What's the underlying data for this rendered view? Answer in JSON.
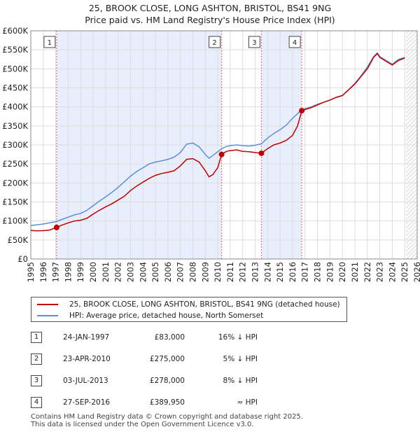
{
  "chart_data": {
    "type": "line",
    "title": "25, BROOK CLOSE, LONG ASHTON, BRISTOL, BS41 9NG",
    "subtitle": "Price paid vs. HM Land Registry's House Price Index (HPI)",
    "xlim": [
      1995,
      2026
    ],
    "ylim": [
      0,
      600000
    ],
    "x_ticks": [
      "1995",
      "1996",
      "1997",
      "1998",
      "1999",
      "2000",
      "2001",
      "2002",
      "2003",
      "2004",
      "2005",
      "2006",
      "2007",
      "2008",
      "2009",
      "2010",
      "2011",
      "2012",
      "2013",
      "2014",
      "2015",
      "2016",
      "2017",
      "2018",
      "2019",
      "2020",
      "2021",
      "2022",
      "2023",
      "2024",
      "2025",
      "2026"
    ],
    "y_ticks": [
      {
        "value": 0,
        "label": "£0"
      },
      {
        "value": 50000,
        "label": "£50K"
      },
      {
        "value": 100000,
        "label": "£100K"
      },
      {
        "value": 150000,
        "label": "£150K"
      },
      {
        "value": 200000,
        "label": "£200K"
      },
      {
        "value": 250000,
        "label": "£250K"
      },
      {
        "value": 300000,
        "label": "£300K"
      },
      {
        "value": 350000,
        "label": "£350K"
      },
      {
        "value": 400000,
        "label": "£400K"
      },
      {
        "value": 450000,
        "label": "£450K"
      },
      {
        "value": 500000,
        "label": "£500K"
      },
      {
        "value": 550000,
        "label": "£550K"
      },
      {
        "value": 600000,
        "label": "£600K"
      }
    ],
    "series": [
      {
        "name": "25, BROOK CLOSE, LONG ASHTON, BRISTOL, BS41 9NG (detached house)",
        "color": "#c00000",
        "points": [
          [
            1995.0,
            75000
          ],
          [
            1995.5,
            74000
          ],
          [
            1996.0,
            74500
          ],
          [
            1996.5,
            76000
          ],
          [
            1997.07,
            83000
          ],
          [
            1997.5,
            89000
          ],
          [
            1998.0,
            95000
          ],
          [
            1998.5,
            100000
          ],
          [
            1999.0,
            102000
          ],
          [
            1999.5,
            107000
          ],
          [
            2000.0,
            118000
          ],
          [
            2000.5,
            128000
          ],
          [
            2001.0,
            137000
          ],
          [
            2001.5,
            145000
          ],
          [
            2002.0,
            155000
          ],
          [
            2002.5,
            165000
          ],
          [
            2003.0,
            180000
          ],
          [
            2003.5,
            192000
          ],
          [
            2004.0,
            202000
          ],
          [
            2004.5,
            212000
          ],
          [
            2005.0,
            220000
          ],
          [
            2005.5,
            225000
          ],
          [
            2006.0,
            228000
          ],
          [
            2006.5,
            232000
          ],
          [
            2007.0,
            245000
          ],
          [
            2007.5,
            262000
          ],
          [
            2008.0,
            264000
          ],
          [
            2008.5,
            255000
          ],
          [
            2009.0,
            232000
          ],
          [
            2009.3,
            216000
          ],
          [
            2009.6,
            222000
          ],
          [
            2010.0,
            240000
          ],
          [
            2010.31,
            275000
          ],
          [
            2010.7,
            283000
          ],
          [
            2011.0,
            285000
          ],
          [
            2011.5,
            287000
          ],
          [
            2012.0,
            283000
          ],
          [
            2012.5,
            282000
          ],
          [
            2013.0,
            280000
          ],
          [
            2013.5,
            278000
          ],
          [
            2014.0,
            290000
          ],
          [
            2014.5,
            300000
          ],
          [
            2015.0,
            305000
          ],
          [
            2015.5,
            312000
          ],
          [
            2016.0,
            325000
          ],
          [
            2016.4,
            350000
          ],
          [
            2016.74,
            389950
          ],
          [
            2017.0,
            393000
          ],
          [
            2017.5,
            398000
          ],
          [
            2018.0,
            405000
          ],
          [
            2018.5,
            412000
          ],
          [
            2019.0,
            418000
          ],
          [
            2019.5,
            425000
          ],
          [
            2020.0,
            430000
          ],
          [
            2020.5,
            445000
          ],
          [
            2021.0,
            460000
          ],
          [
            2021.5,
            480000
          ],
          [
            2022.0,
            500000
          ],
          [
            2022.5,
            530000
          ],
          [
            2022.8,
            540000
          ],
          [
            2023.0,
            530000
          ],
          [
            2023.5,
            520000
          ],
          [
            2024.0,
            510000
          ],
          [
            2024.5,
            522000
          ],
          [
            2025.0,
            528000
          ]
        ]
      },
      {
        "name": "HPI: Average price, detached house, North Somerset",
        "color": "#5b8fd6",
        "points": [
          [
            1995.0,
            88000
          ],
          [
            1995.5,
            90000
          ],
          [
            1996.0,
            92000
          ],
          [
            1996.5,
            95000
          ],
          [
            1997.0,
            98000
          ],
          [
            1997.5,
            104000
          ],
          [
            1998.0,
            110000
          ],
          [
            1998.5,
            116000
          ],
          [
            1999.0,
            120000
          ],
          [
            1999.5,
            128000
          ],
          [
            2000.0,
            140000
          ],
          [
            2000.5,
            152000
          ],
          [
            2001.0,
            163000
          ],
          [
            2001.5,
            175000
          ],
          [
            2002.0,
            188000
          ],
          [
            2002.5,
            203000
          ],
          [
            2003.0,
            218000
          ],
          [
            2003.5,
            230000
          ],
          [
            2004.0,
            240000
          ],
          [
            2004.5,
            250000
          ],
          [
            2005.0,
            255000
          ],
          [
            2005.5,
            258000
          ],
          [
            2006.0,
            262000
          ],
          [
            2006.5,
            268000
          ],
          [
            2007.0,
            280000
          ],
          [
            2007.5,
            302000
          ],
          [
            2008.0,
            305000
          ],
          [
            2008.5,
            295000
          ],
          [
            2009.0,
            275000
          ],
          [
            2009.3,
            265000
          ],
          [
            2009.6,
            272000
          ],
          [
            2010.0,
            282000
          ],
          [
            2010.31,
            290000
          ],
          [
            2010.7,
            296000
          ],
          [
            2011.0,
            298000
          ],
          [
            2011.5,
            300000
          ],
          [
            2012.0,
            298000
          ],
          [
            2012.5,
            297000
          ],
          [
            2013.0,
            299000
          ],
          [
            2013.5,
            303000
          ],
          [
            2014.0,
            318000
          ],
          [
            2014.5,
            330000
          ],
          [
            2015.0,
            340000
          ],
          [
            2015.5,
            352000
          ],
          [
            2016.0,
            370000
          ],
          [
            2016.5,
            385000
          ],
          [
            2016.74,
            392000
          ],
          [
            2017.0,
            395000
          ],
          [
            2017.5,
            400000
          ],
          [
            2018.0,
            407000
          ],
          [
            2018.5,
            412000
          ],
          [
            2019.0,
            418000
          ],
          [
            2019.5,
            425000
          ],
          [
            2020.0,
            430000
          ],
          [
            2020.5,
            445000
          ],
          [
            2021.0,
            462000
          ],
          [
            2021.5,
            482000
          ],
          [
            2022.0,
            505000
          ],
          [
            2022.5,
            532000
          ],
          [
            2022.8,
            542000
          ],
          [
            2023.0,
            532000
          ],
          [
            2023.5,
            522000
          ],
          [
            2024.0,
            512000
          ],
          [
            2024.5,
            525000
          ],
          [
            2025.0,
            530000
          ]
        ]
      }
    ],
    "sales": [
      {
        "num": "1",
        "x": 1997.07,
        "price": 83000
      },
      {
        "num": "2",
        "x": 2010.31,
        "price": 275000
      },
      {
        "num": "3",
        "x": 2013.5,
        "price": 278000
      },
      {
        "num": "4",
        "x": 2016.74,
        "price": 389950
      }
    ],
    "shaded_regions": [
      [
        1997.07,
        2010.31
      ],
      [
        2013.5,
        2016.74
      ]
    ],
    "hatch_from": 2025.1
  },
  "legend": {
    "property_label": "25, BROOK CLOSE, LONG ASHTON, BRISTOL, BS41 9NG (detached house)",
    "hpi_label": "HPI: Average price, detached house, North Somerset",
    "property_color": "#c00000",
    "hpi_color": "#5b8fd6"
  },
  "sales_table": [
    {
      "num": "1",
      "date": "24-JAN-1997",
      "price": "£83,000",
      "hpi": "16% ↓ HPI"
    },
    {
      "num": "2",
      "date": "23-APR-2010",
      "price": "£275,000",
      "hpi": "5% ↓ HPI"
    },
    {
      "num": "3",
      "date": "03-JUL-2013",
      "price": "£278,000",
      "hpi": "8% ↓ HPI"
    },
    {
      "num": "4",
      "date": "27-SEP-2016",
      "price": "£389,950",
      "hpi": "≈ HPI"
    }
  ],
  "footer": {
    "line1": "Contains HM Land Registry data © Crown copyright and database right 2025.",
    "line2": "This data is licensed under the Open Government Licence v3.0."
  }
}
